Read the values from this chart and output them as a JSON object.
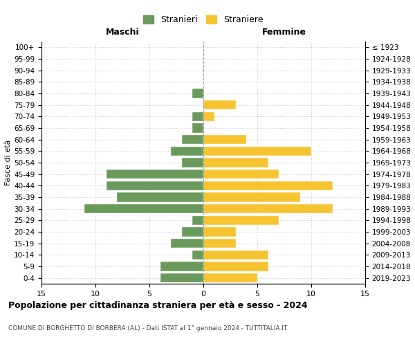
{
  "age_groups": [
    "100+",
    "95-99",
    "90-94",
    "85-89",
    "80-84",
    "75-79",
    "70-74",
    "65-69",
    "60-64",
    "55-59",
    "50-54",
    "45-49",
    "40-44",
    "35-39",
    "30-34",
    "25-29",
    "20-24",
    "15-19",
    "10-14",
    "5-9",
    "0-4"
  ],
  "birth_years": [
    "≤ 1923",
    "1924-1928",
    "1929-1933",
    "1934-1938",
    "1939-1943",
    "1944-1948",
    "1949-1953",
    "1954-1958",
    "1959-1963",
    "1964-1968",
    "1969-1973",
    "1974-1978",
    "1979-1983",
    "1984-1988",
    "1989-1993",
    "1994-1998",
    "1999-2003",
    "2004-2008",
    "2009-2013",
    "2014-2018",
    "2019-2023"
  ],
  "males": [
    0,
    0,
    0,
    0,
    1,
    0,
    1,
    1,
    2,
    3,
    2,
    9,
    9,
    8,
    11,
    1,
    2,
    3,
    1,
    4,
    4
  ],
  "females": [
    0,
    0,
    0,
    0,
    0,
    3,
    1,
    0,
    4,
    10,
    6,
    7,
    12,
    9,
    12,
    7,
    3,
    3,
    6,
    6,
    5
  ],
  "male_color": "#6a9a5b",
  "female_color": "#f5c430",
  "male_label": "Stranieri",
  "female_label": "Straniere",
  "title": "Popolazione per cittadinanza straniera per età e sesso - 2024",
  "subtitle": "COMUNE DI BORGHETTO DI BORBERA (AL) - Dati ISTAT al 1° gennaio 2024 - TUTTITALIA.IT",
  "xlabel_left": "Maschi",
  "xlabel_right": "Femmine",
  "ylabel_left": "Fasce di età",
  "xlim": 15,
  "grid_color": "#cccccc",
  "background_color": "#ffffff",
  "bar_height": 0.8
}
